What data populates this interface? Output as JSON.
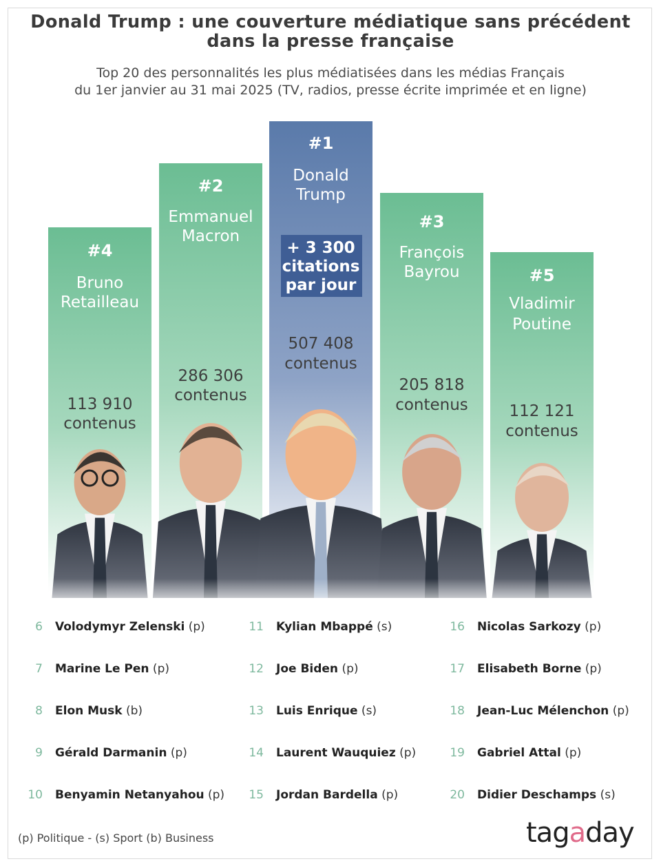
{
  "title_line1": "Donald Trump : une couverture médiatique sans précédent",
  "title_line2": "dans la presse française",
  "subtitle_line1": "Top 20 des personnalités les plus médiatisées dans les médias Français",
  "subtitle_line2": "du 1er janvier au 31 mai 2025 (TV, radios, presse écrite imprimée et en ligne)",
  "colors": {
    "green_bar_top": "#6bbd93",
    "blue_bar_top": "#5a7aaa",
    "rank_green": "#7db89d",
    "logo_accent": "#e06b8a"
  },
  "chart_data": {
    "type": "bar",
    "value_unit": "contenus",
    "bars": [
      {
        "rank": "#4",
        "name_line1": "Bruno",
        "name_line2": "Retailleau",
        "value": 113910,
        "value_label": "113 910",
        "unit_label": "contenus",
        "photo": "person-photo"
      },
      {
        "rank": "#2",
        "name_line1": "Emmanuel",
        "name_line2": "Macron",
        "value": 286306,
        "value_label": "286 306",
        "unit_label": "contenus",
        "photo": "person-photo"
      },
      {
        "rank": "#1",
        "name_line1": "Donald",
        "name_line2": "Trump",
        "value": 507408,
        "value_label": "507 408",
        "unit_label": "contenus",
        "highlight": true,
        "callout": [
          "+ 3 300",
          "citations",
          "par jour"
        ],
        "photo": "person-photo"
      },
      {
        "rank": "#3",
        "name_line1": "François",
        "name_line2": "Bayrou",
        "value": 205818,
        "value_label": "205 818",
        "unit_label": "contenus",
        "photo": "person-photo"
      },
      {
        "rank": "#5",
        "name_line1": "Vladimir",
        "name_line2": "Poutine",
        "value": 112121,
        "value_label": "112 121",
        "unit_label": "contenus",
        "photo": "person-photo"
      }
    ]
  },
  "ranking_list": [
    [
      {
        "rank": "6",
        "name": "Volodymyr Zelenski",
        "cat": "(p)"
      },
      {
        "rank": "7",
        "name": "Marine Le Pen",
        "cat": "(p)"
      },
      {
        "rank": "8",
        "name": "Elon Musk",
        "cat": "(b)"
      },
      {
        "rank": "9",
        "name": "Gérald Darmanin",
        "cat": "(p)"
      },
      {
        "rank": "10",
        "name": "Benyamin Netanyahou",
        "cat": "(p)"
      }
    ],
    [
      {
        "rank": "11",
        "name": "Kylian Mbappé",
        "cat": "(s)"
      },
      {
        "rank": "12",
        "name": "Joe Biden",
        "cat": "(p)"
      },
      {
        "rank": "13",
        "name": "Luis Enrique",
        "cat": "(s)"
      },
      {
        "rank": "14",
        "name": "Laurent Wauquiez",
        "cat": "(p)"
      },
      {
        "rank": "15",
        "name": "Jordan Bardella",
        "cat": "(p)"
      }
    ],
    [
      {
        "rank": "16",
        "name": "Nicolas Sarkozy",
        "cat": "(p)"
      },
      {
        "rank": "17",
        "name": "Elisabeth Borne",
        "cat": "(p)"
      },
      {
        "rank": "18",
        "name": "Jean-Luc Mélenchon",
        "cat": "(p)"
      },
      {
        "rank": "19",
        "name": "Gabriel Attal",
        "cat": "(p)"
      },
      {
        "rank": "20",
        "name": "Didier Deschamps",
        "cat": "(s)"
      }
    ]
  ],
  "legend": "(p) Politique - (s) Sport (b) Business",
  "logo_parts": [
    "tag",
    "a",
    "day"
  ]
}
